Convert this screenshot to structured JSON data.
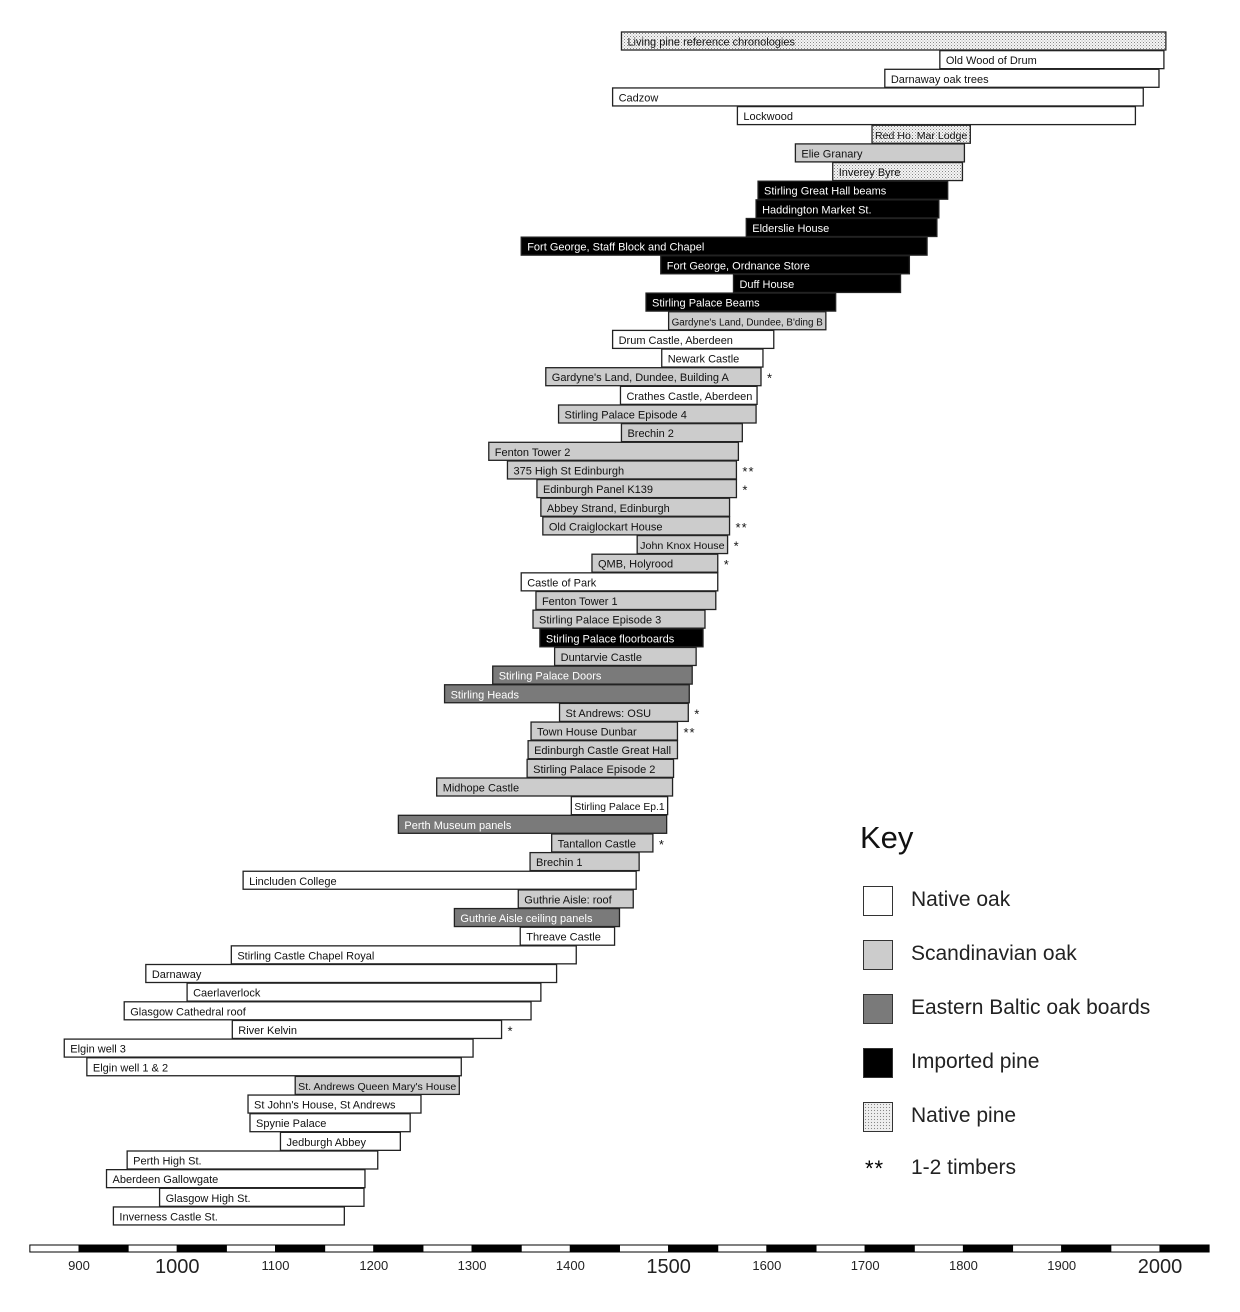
{
  "chart_data": {
    "type": "timeline",
    "title": "",
    "xlabel": "",
    "xlim": [
      850,
      2050
    ],
    "x_ticks": [
      900,
      1000,
      1100,
      1200,
      1300,
      1400,
      1500,
      1600,
      1700,
      1800,
      1900,
      2000
    ],
    "x_ticks_major": [
      1000,
      1500,
      2000
    ],
    "colors": {
      "native_oak": "#ffffff",
      "scandinavian_oak": "#cccccc",
      "baltic": "#7a7a7a",
      "imported_pine": "#000000",
      "native_pine": "#eeeeee"
    },
    "bars": [
      {
        "label": "Living pine reference chronologies",
        "start": 1452,
        "end": 2006,
        "type": "native_pine",
        "marker": ""
      },
      {
        "label": "Old Wood of Drum",
        "start": 1776,
        "end": 2004,
        "type": "native_oak",
        "marker": ""
      },
      {
        "label": "Darnaway oak trees",
        "start": 1720,
        "end": 1999,
        "type": "native_oak",
        "marker": ""
      },
      {
        "label": "Cadzow",
        "start": 1443,
        "end": 1983,
        "type": "native_oak",
        "marker": ""
      },
      {
        "label": "Lockwood",
        "start": 1570,
        "end": 1975,
        "type": "native_oak",
        "marker": ""
      },
      {
        "label": "Red Ho. Mar Lodge",
        "start": 1707,
        "end": 1807,
        "type": "native_pine",
        "marker": ""
      },
      {
        "label": "Elie Granary",
        "start": 1629,
        "end": 1801,
        "type": "scandinavian_oak",
        "marker": ""
      },
      {
        "label": "Inverey Byre",
        "start": 1667,
        "end": 1799,
        "type": "native_pine",
        "marker": ""
      },
      {
        "label": "Stirling Great Hall beams",
        "start": 1591,
        "end": 1784,
        "type": "imported_pine",
        "marker": ""
      },
      {
        "label": "Haddington Market St.",
        "start": 1589,
        "end": 1775,
        "type": "imported_pine",
        "marker": ""
      },
      {
        "label": "Elderslie House",
        "start": 1579,
        "end": 1773,
        "type": "imported_pine",
        "marker": ""
      },
      {
        "label": "Fort George, Staff Block and Chapel",
        "start": 1350,
        "end": 1763,
        "type": "imported_pine",
        "marker": ""
      },
      {
        "label": "Fort George, Ordnance Store",
        "start": 1492,
        "end": 1745,
        "type": "imported_pine",
        "marker": ""
      },
      {
        "label": "Duff House",
        "start": 1566,
        "end": 1736,
        "type": "imported_pine",
        "marker": ""
      },
      {
        "label": "Stirling Palace Beams",
        "start": 1477,
        "end": 1670,
        "type": "imported_pine",
        "marker": ""
      },
      {
        "label": "Gardyne's Land, Dundee, B'ding B",
        "start": 1500,
        "end": 1660,
        "type": "scandinavian_oak",
        "marker": ""
      },
      {
        "label": "Drum Castle, Aberdeen",
        "start": 1443,
        "end": 1607,
        "type": "native_oak",
        "marker": ""
      },
      {
        "label": "Newark Castle",
        "start": 1493,
        "end": 1596,
        "type": "native_oak",
        "marker": ""
      },
      {
        "label": "Gardyne's Land, Dundee, Building A",
        "start": 1375,
        "end": 1594,
        "type": "scandinavian_oak",
        "marker": "*"
      },
      {
        "label": "Crathes Castle, Aberdeen",
        "start": 1451,
        "end": 1590,
        "type": "native_oak",
        "marker": ""
      },
      {
        "label": "Stirling Palace Episode 4",
        "start": 1388,
        "end": 1589,
        "type": "scandinavian_oak",
        "marker": ""
      },
      {
        "label": "Brechin 2",
        "start": 1452,
        "end": 1575,
        "type": "scandinavian_oak",
        "marker": ""
      },
      {
        "label": "Fenton Tower 2",
        "start": 1317,
        "end": 1571,
        "type": "scandinavian_oak",
        "marker": ""
      },
      {
        "label": "375 High St Edinburgh",
        "start": 1336,
        "end": 1569,
        "type": "scandinavian_oak",
        "marker": "**"
      },
      {
        "label": "Edinburgh Panel K139",
        "start": 1366,
        "end": 1569,
        "type": "scandinavian_oak",
        "marker": "*"
      },
      {
        "label": "Abbey Strand, Edinburgh",
        "start": 1370,
        "end": 1562,
        "type": "scandinavian_oak",
        "marker": ""
      },
      {
        "label": "Old Craiglockart House",
        "start": 1372,
        "end": 1562,
        "type": "scandinavian_oak",
        "marker": "**"
      },
      {
        "label": "John Knox House",
        "start": 1468,
        "end": 1560,
        "type": "scandinavian_oak",
        "marker": "*"
      },
      {
        "label": "QMB, Holyrood",
        "start": 1422,
        "end": 1550,
        "type": "scandinavian_oak",
        "marker": "*"
      },
      {
        "label": "Castle of Park",
        "start": 1350,
        "end": 1550,
        "type": "native_oak",
        "marker": ""
      },
      {
        "label": "Fenton Tower 1",
        "start": 1365,
        "end": 1548,
        "type": "scandinavian_oak",
        "marker": ""
      },
      {
        "label": "Stirling Palace Episode 3",
        "start": 1362,
        "end": 1537,
        "type": "scandinavian_oak",
        "marker": ""
      },
      {
        "label": "Stirling Palace floorboards",
        "start": 1369,
        "end": 1535,
        "type": "imported_pine",
        "marker": ""
      },
      {
        "label": "Duntarvie Castle",
        "start": 1384,
        "end": 1528,
        "type": "scandinavian_oak",
        "marker": ""
      },
      {
        "label": "Stirling Palace Doors",
        "start": 1321,
        "end": 1524,
        "type": "baltic",
        "marker": ""
      },
      {
        "label": "Stirling Heads",
        "start": 1272,
        "end": 1521,
        "type": "baltic",
        "marker": ""
      },
      {
        "label": "St Andrews: OSU",
        "start": 1389,
        "end": 1520,
        "type": "scandinavian_oak",
        "marker": "*"
      },
      {
        "label": "Town House Dunbar",
        "start": 1360,
        "end": 1509,
        "type": "scandinavian_oak",
        "marker": "**"
      },
      {
        "label": "Edinburgh Castle Great Hall",
        "start": 1357,
        "end": 1509,
        "type": "scandinavian_oak",
        "marker": ""
      },
      {
        "label": "Stirling Palace Episode 2",
        "start": 1356,
        "end": 1505,
        "type": "scandinavian_oak",
        "marker": ""
      },
      {
        "label": "Midhope Castle",
        "start": 1264,
        "end": 1504,
        "type": "scandinavian_oak",
        "marker": ""
      },
      {
        "label": "Stirling Palace Ep.1",
        "start": 1401,
        "end": 1499,
        "type": "native_oak",
        "marker": ""
      },
      {
        "label": "Perth Museum panels",
        "start": 1225,
        "end": 1498,
        "type": "baltic",
        "marker": ""
      },
      {
        "label": "Tantallon Castle",
        "start": 1381,
        "end": 1484,
        "type": "scandinavian_oak",
        "marker": "*"
      },
      {
        "label": "Brechin 1",
        "start": 1359,
        "end": 1470,
        "type": "scandinavian_oak",
        "marker": ""
      },
      {
        "label": "Lincluden College",
        "start": 1067,
        "end": 1467,
        "type": "native_oak",
        "marker": ""
      },
      {
        "label": "Guthrie Aisle: roof",
        "start": 1347,
        "end": 1464,
        "type": "scandinavian_oak",
        "marker": ""
      },
      {
        "label": "Guthrie Aisle ceiling panels",
        "start": 1282,
        "end": 1450,
        "type": "baltic",
        "marker": ""
      },
      {
        "label": "Threave Castle",
        "start": 1349,
        "end": 1445,
        "type": "native_oak",
        "marker": ""
      },
      {
        "label": "Stirling Castle Chapel Royal",
        "start": 1055,
        "end": 1406,
        "type": "native_oak",
        "marker": ""
      },
      {
        "label": "Darnaway",
        "start": 968,
        "end": 1386,
        "type": "native_oak",
        "marker": ""
      },
      {
        "label": "Caerlaverlock",
        "start": 1010,
        "end": 1370,
        "type": "native_oak",
        "marker": ""
      },
      {
        "label": "Glasgow Cathedral roof",
        "start": 946,
        "end": 1360,
        "type": "native_oak",
        "marker": ""
      },
      {
        "label": "River Kelvin",
        "start": 1056,
        "end": 1330,
        "type": "native_oak",
        "marker": "*"
      },
      {
        "label": "Elgin well 3",
        "start": 885,
        "end": 1301,
        "type": "native_oak",
        "marker": ""
      },
      {
        "label": "Elgin well 1 & 2",
        "start": 908,
        "end": 1289,
        "type": "native_oak",
        "marker": ""
      },
      {
        "label": "St. Andrews Queen Mary's House",
        "start": 1120,
        "end": 1287,
        "type": "scandinavian_oak",
        "marker": ""
      },
      {
        "label": "St John's House, St Andrews",
        "start": 1072,
        "end": 1248,
        "type": "native_oak",
        "marker": ""
      },
      {
        "label": "Spynie Palace",
        "start": 1074,
        "end": 1237,
        "type": "native_oak",
        "marker": ""
      },
      {
        "label": "Jedburgh Abbey",
        "start": 1105,
        "end": 1227,
        "type": "native_oak",
        "marker": ""
      },
      {
        "label": "Perth High St.",
        "start": 949,
        "end": 1204,
        "type": "native_oak",
        "marker": ""
      },
      {
        "label": "Aberdeen Gallowgate",
        "start": 928,
        "end": 1191,
        "type": "native_oak",
        "marker": ""
      },
      {
        "label": "Glasgow High St.",
        "start": 982,
        "end": 1190,
        "type": "native_oak",
        "marker": ""
      },
      {
        "label": "Inverness Castle St.",
        "start": 935,
        "end": 1170,
        "type": "native_oak",
        "marker": ""
      }
    ],
    "legend": {
      "title": "Key",
      "placement": "bottom-right",
      "items": [
        {
          "type": "native_oak",
          "label": "Native oak"
        },
        {
          "type": "scandinavian_oak",
          "label": "Scandinavian oak"
        },
        {
          "type": "baltic",
          "label": "Eastern Baltic oak boards"
        },
        {
          "type": "imported_pine",
          "label": "Imported pine"
        },
        {
          "type": "native_pine",
          "label": "Native pine"
        },
        {
          "type": "marker",
          "symbol": "**",
          "label": "1-2 timbers"
        }
      ]
    }
  }
}
